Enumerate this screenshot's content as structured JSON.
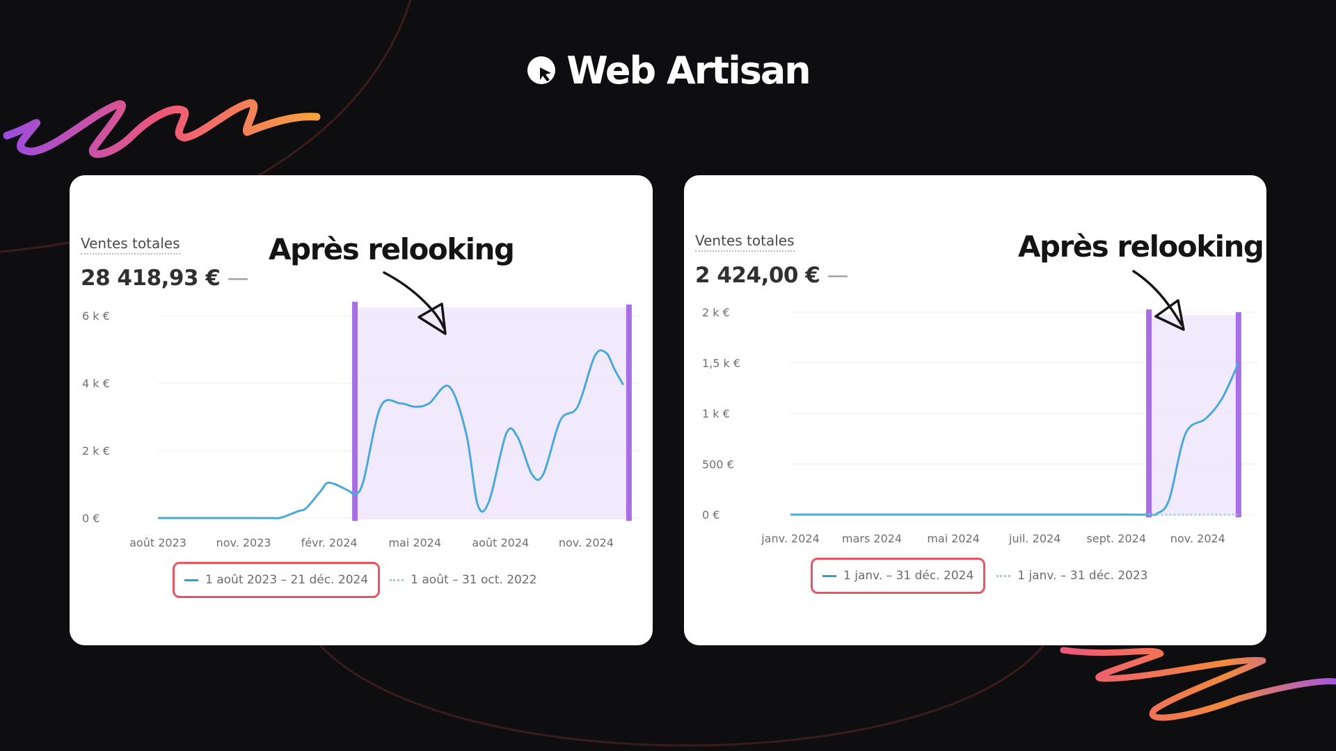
{
  "brand": {
    "name": "Web Artisan",
    "logo_icon": "cursor-logo-icon"
  },
  "colors": {
    "background": "#0e0e10",
    "line": "#4aa8dc",
    "highlight_fill": "#efe6fb",
    "highlight_bar": "#a86ee5",
    "legend_box": "#ea5461"
  },
  "left": {
    "title": "Ventes totales",
    "total": "28 418,93 €",
    "total_dash": "—",
    "annotation": "Après relooking",
    "legend": {
      "current": "1 août 2023 – 21 déc. 2024",
      "previous": "1 août – 31 oct. 2022"
    }
  },
  "right": {
    "title": "Ventes totales",
    "total": "2 424,00 €",
    "total_dash": "—",
    "annotation": "Après relooking",
    "legend": {
      "current": "1 janv. – 31 déc. 2024",
      "previous": "1 janv. – 31 déc. 2023"
    }
  },
  "chart_data": [
    {
      "type": "line",
      "title": "Ventes totales",
      "ylim": [
        0,
        6000
      ],
      "yticks": [
        0,
        2000,
        4000,
        6000
      ],
      "ytick_labels": [
        "0 €",
        "2 k €",
        "4 k €",
        "6 k €"
      ],
      "xlim": [
        0,
        16.6
      ],
      "xticks": [
        0,
        3,
        6,
        9,
        12,
        15
      ],
      "xtick_labels": [
        "août 2023",
        "nov. 2023",
        "févr. 2024",
        "mai 2024",
        "août 2024",
        "nov. 2024"
      ],
      "highlight_range": [
        6.9,
        16.5
      ],
      "grid": true,
      "legend_position": "bottom",
      "series": [
        {
          "name": "1 août 2023 – 21 déc. 2024",
          "style": "solid",
          "x": [
            0,
            1,
            2,
            3,
            4,
            4.3,
            4.9,
            5.2,
            5.7,
            6.0,
            6.7,
            6.9,
            7.2,
            7.8,
            8.5,
            9.0,
            9.5,
            10.2,
            10.8,
            11.2,
            11.6,
            12.2,
            12.6,
            13.1,
            13.5,
            14.1,
            14.7,
            15.3,
            15.7,
            16.0,
            16.3
          ],
          "y": [
            0,
            0,
            0,
            0,
            0,
            10,
            200,
            300,
            800,
            1050,
            800,
            700,
            1100,
            3300,
            3400,
            3300,
            3400,
            3900,
            2500,
            400,
            500,
            2500,
            2400,
            1300,
            1300,
            2900,
            3300,
            4800,
            4900,
            4400,
            3950
          ]
        },
        {
          "name": "1 août – 31 oct. 2022",
          "style": "dotted",
          "x": [],
          "y": []
        }
      ]
    },
    {
      "type": "line",
      "title": "Ventes totales",
      "ylim": [
        0,
        2000
      ],
      "yticks": [
        0,
        500,
        1000,
        1500,
        2000
      ],
      "ytick_labels": [
        "0 €",
        "500 €",
        "1 k €",
        "1,5 k €",
        "2 k €"
      ],
      "xlim": [
        0,
        11.6
      ],
      "xticks": [
        0,
        2,
        4,
        6,
        8,
        10
      ],
      "xtick_labels": [
        "janv. 2024",
        "mars 2024",
        "mai 2024",
        "juil. 2024",
        "sept. 2024",
        "nov. 2024"
      ],
      "highlight_range": [
        8.8,
        11.0
      ],
      "grid": true,
      "legend_position": "bottom",
      "series": [
        {
          "name": "1 janv. – 31 déc. 2024",
          "style": "solid",
          "x": [
            0,
            1,
            2,
            3,
            4,
            5,
            6,
            7,
            8,
            8.8,
            9.0,
            9.3,
            9.7,
            10.2,
            10.6,
            11.0
          ],
          "y": [
            0,
            0,
            0,
            0,
            0,
            0,
            0,
            0,
            0,
            0,
            10,
            150,
            800,
            950,
            1150,
            1500
          ]
        },
        {
          "name": "1 janv. – 31 déc. 2023",
          "style": "dotted",
          "x": [
            8.8,
            9.5,
            10.2,
            11.0
          ],
          "y": [
            0,
            0,
            0,
            0
          ]
        }
      ]
    }
  ]
}
